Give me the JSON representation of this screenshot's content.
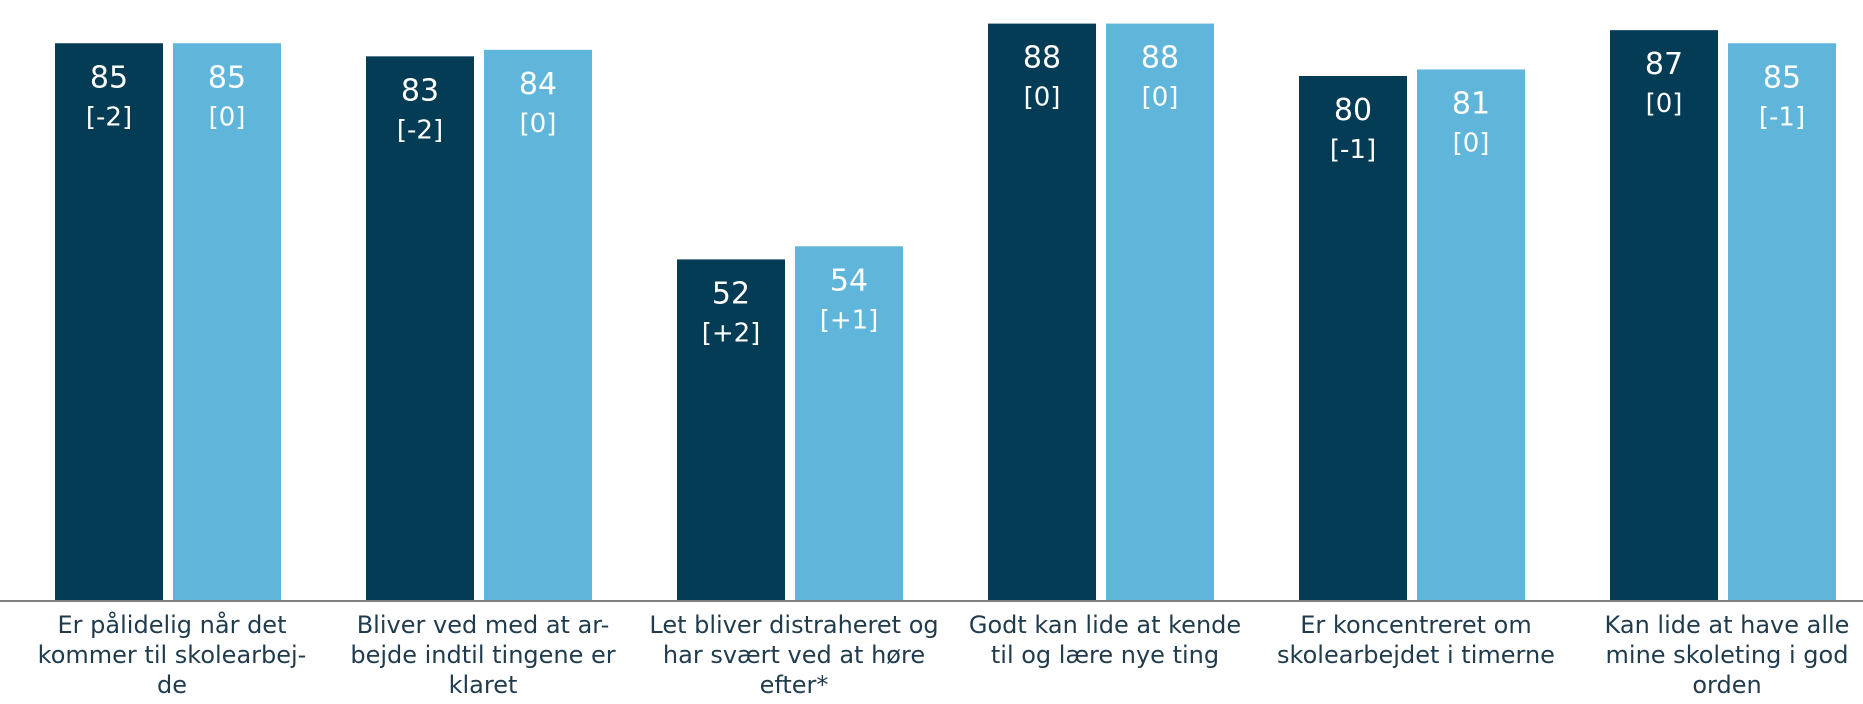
{
  "chart_data": {
    "type": "bar",
    "categories": [
      [
        "Er pålidelig når det",
        "kommer til skolearbej-",
        "de"
      ],
      [
        "Bliver ved med at ar-",
        "bejde indtil tingene er",
        "klaret"
      ],
      [
        "Let bliver distraheret og",
        "har svært ved at høre",
        "efter*"
      ],
      [
        "Godt kan lide at kende",
        "til og lære nye ting"
      ],
      [
        "Er koncentreret om",
        "skolearbejdet i timerne"
      ],
      [
        "Kan lide at have alle",
        "mine skoleting i god",
        "orden"
      ]
    ],
    "series": [
      {
        "color": "#053c55",
        "values": [
          85,
          83,
          52,
          88,
          80,
          87
        ],
        "changes": [
          "[-2]",
          "[-2]",
          "[+2]",
          "[0]",
          "[-1]",
          "[0]"
        ]
      },
      {
        "color": "#5fb6da",
        "values": [
          85,
          84,
          54,
          88,
          81,
          85
        ],
        "changes": [
          "[0]",
          "[0]",
          "[+1]",
          "[0]",
          "[0]",
          "[-1]"
        ]
      }
    ],
    "ylim": [
      0,
      100
    ],
    "grid": false,
    "legend": "none",
    "label_color": "#ffffff",
    "axis_color": "#7f7f7f",
    "category_text_color": "#1f3b4d"
  }
}
